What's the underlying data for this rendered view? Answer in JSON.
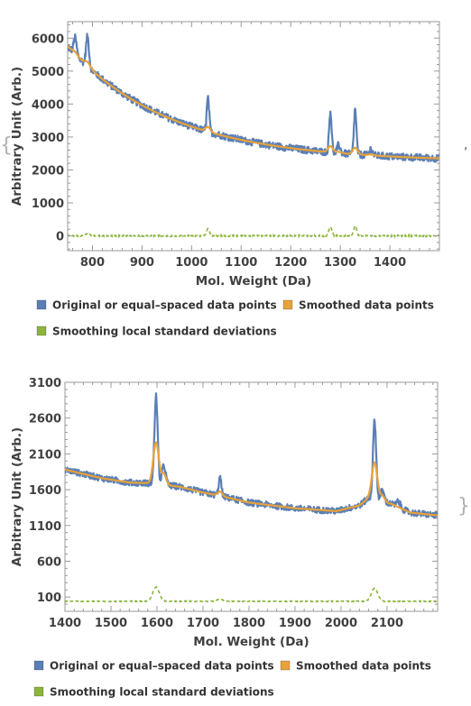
{
  "colors": {
    "original": "#5b7fb5",
    "smoothed": "#e8a23a",
    "stddev": "#8cb43c",
    "frame": "#9a9a9a",
    "text": "#404040"
  },
  "decor": {
    "open_brace": "{",
    "close_brace": "}",
    "separator": ","
  },
  "chart_data": [
    {
      "type": "line",
      "xlabel": "Mol. Weight  (Da)",
      "ylabel": "Arbitrary Unit  (Arb.)",
      "xlim": [
        750,
        1500
      ],
      "ylim": [
        -450,
        6500
      ],
      "xticks": [
        800,
        900,
        1000,
        1100,
        1200,
        1300,
        1400
      ],
      "yticks": [
        0,
        1000,
        2000,
        3000,
        4000,
        5000,
        6000
      ],
      "baseline": {
        "x": [
          750,
          1500
        ],
        "y": [
          5750,
          2350
        ],
        "decay": 210
      },
      "peaks": [
        {
          "x": 765,
          "height": 500,
          "width": 3
        },
        {
          "x": 790,
          "height": 900,
          "width": 3
        },
        {
          "x": 1033,
          "height": 1000,
          "width": 2.5
        },
        {
          "x": 1280,
          "height": 1250,
          "width": 2.5
        },
        {
          "x": 1297,
          "height": 250,
          "width": 3
        },
        {
          "x": 1330,
          "height": 1350,
          "width": 2.5
        },
        {
          "x": 1362,
          "height": 200,
          "width": 3
        }
      ],
      "noise": 110,
      "stddev_level": 0,
      "stddev_bumps": [
        {
          "x": 790,
          "height": 60,
          "width": 4
        },
        {
          "x": 1033,
          "height": 220,
          "width": 3
        },
        {
          "x": 1280,
          "height": 280,
          "width": 3
        },
        {
          "x": 1330,
          "height": 300,
          "width": 3
        }
      ],
      "series": [
        {
          "name": "Original or equal–spaced data points"
        },
        {
          "name": "Smoothed data points"
        },
        {
          "name": "Smoothing local standard deviations"
        }
      ],
      "legend": "bottom",
      "grid": false
    },
    {
      "type": "line",
      "xlabel": "Mol. Weight  (Da)",
      "ylabel": "Arbitrary Unit  (Arb.)",
      "xlim": [
        1400,
        2210
      ],
      "ylim": [
        -100,
        3100
      ],
      "xticks": [
        1400,
        1500,
        1600,
        1700,
        1800,
        1900,
        2000,
        2100
      ],
      "yticks": [
        100,
        600,
        1100,
        1600,
        2100,
        2600,
        3100
      ],
      "baseline": {
        "x": [
          1400,
          2210
        ],
        "y": [
          1880,
          1220
        ],
        "decay": 0
      },
      "profile": [
        [
          1400,
          1880
        ],
        [
          1480,
          1760
        ],
        [
          1540,
          1700
        ],
        [
          1585,
          1690
        ],
        [
          1650,
          1640
        ],
        [
          1700,
          1560
        ],
        [
          1740,
          1510
        ],
        [
          1800,
          1420
        ],
        [
          1900,
          1340
        ],
        [
          1990,
          1300
        ],
        [
          2040,
          1380
        ],
        [
          2060,
          1480
        ],
        [
          2110,
          1400
        ],
        [
          2150,
          1280
        ],
        [
          2210,
          1240
        ]
      ],
      "peaks": [
        {
          "x": 1598,
          "height": 1230,
          "width": 3.5
        },
        {
          "x": 1615,
          "height": 270,
          "width": 4
        },
        {
          "x": 1737,
          "height": 250,
          "width": 3
        },
        {
          "x": 2073,
          "height": 1100,
          "width": 3.5
        },
        {
          "x": 2090,
          "height": 150,
          "width": 4
        },
        {
          "x": 2125,
          "height": 80,
          "width": 4
        }
      ],
      "smooth_peaks": [
        {
          "x": 1598,
          "height": 580,
          "width": 6
        },
        {
          "x": 1615,
          "height": 150,
          "width": 5
        },
        {
          "x": 1737,
          "height": 60,
          "width": 5
        },
        {
          "x": 2073,
          "height": 520,
          "width": 6
        },
        {
          "x": 2090,
          "height": 80,
          "width": 5
        }
      ],
      "noise": 45,
      "stddev_level": 40,
      "stddev_bumps": [
        {
          "x": 1598,
          "height": 200,
          "width": 7
        },
        {
          "x": 1737,
          "height": 30,
          "width": 6
        },
        {
          "x": 2073,
          "height": 180,
          "width": 7
        }
      ],
      "series": [
        {
          "name": "Original or equal–spaced data points"
        },
        {
          "name": "Smoothed data points"
        },
        {
          "name": "Smoothing local standard deviations"
        }
      ],
      "legend": "bottom",
      "grid": false
    }
  ]
}
